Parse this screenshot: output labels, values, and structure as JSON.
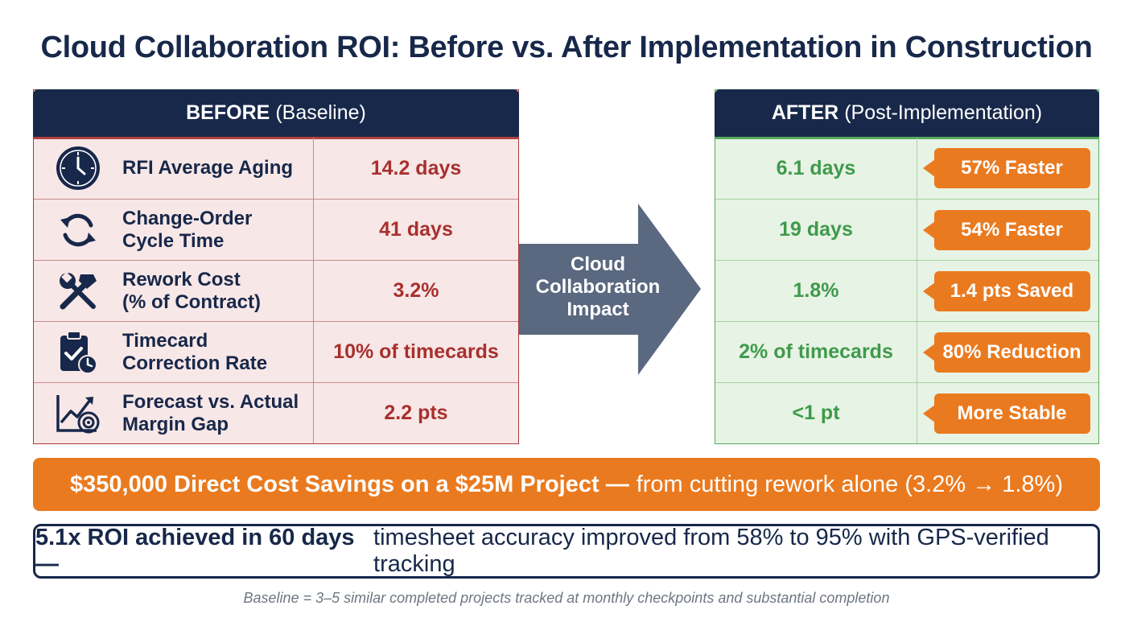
{
  "title": "Cloud Collaboration ROI: Before vs. After Implementation in Construction",
  "before": {
    "header_bold": "BEFORE",
    "header_rest": "(Baseline)",
    "rows": [
      {
        "icon": "clock-icon",
        "label": "RFI Average Aging",
        "value": "14.2 days"
      },
      {
        "icon": "refresh-cycle-icon",
        "label": "Change-Order\nCycle Time",
        "value": "41 days"
      },
      {
        "icon": "tools-icon",
        "label": "Rework Cost\n(% of Contract)",
        "value": "3.2%"
      },
      {
        "icon": "clipboard-clock-icon",
        "label": "Timecard\nCorrection Rate",
        "value": "10% of timecards"
      },
      {
        "icon": "trend-target-icon",
        "label": "Forecast vs. Actual\nMargin Gap",
        "value": "2.2 pts"
      }
    ]
  },
  "arrow": {
    "label": "Cloud\nCollaboration\nImpact"
  },
  "after": {
    "header_bold": "AFTER",
    "header_rest": "(Post-Implementation)",
    "rows": [
      {
        "value": "6.1 days",
        "badge": "57% Faster"
      },
      {
        "value": "19 days",
        "badge": "54% Faster"
      },
      {
        "value": "1.8%",
        "badge": "1.4 pts Saved"
      },
      {
        "value": "2% of timecards",
        "badge": "80% Reduction"
      },
      {
        "value": "<1 pt",
        "badge": "More Stable"
      }
    ]
  },
  "savings_banner": {
    "bold": "$350,000 Direct Cost Savings on a $25M Project —",
    "rest": "from cutting rework alone (3.2% → 1.8%)"
  },
  "roi_banner": {
    "bold": "5.1x ROI achieved in 60 days —",
    "rest": "timesheet accuracy improved from 58% to 95% with GPS-verified tracking"
  },
  "footnote": "Baseline = 3–5 similar completed projects tracked at monthly checkpoints and substantial completion",
  "colors": {
    "navy": "#17284a",
    "before_red": "#a8302e",
    "after_green": "#3f9a4b",
    "accent_orange": "#ea7a1f",
    "arrow_slate": "#5a6880"
  }
}
